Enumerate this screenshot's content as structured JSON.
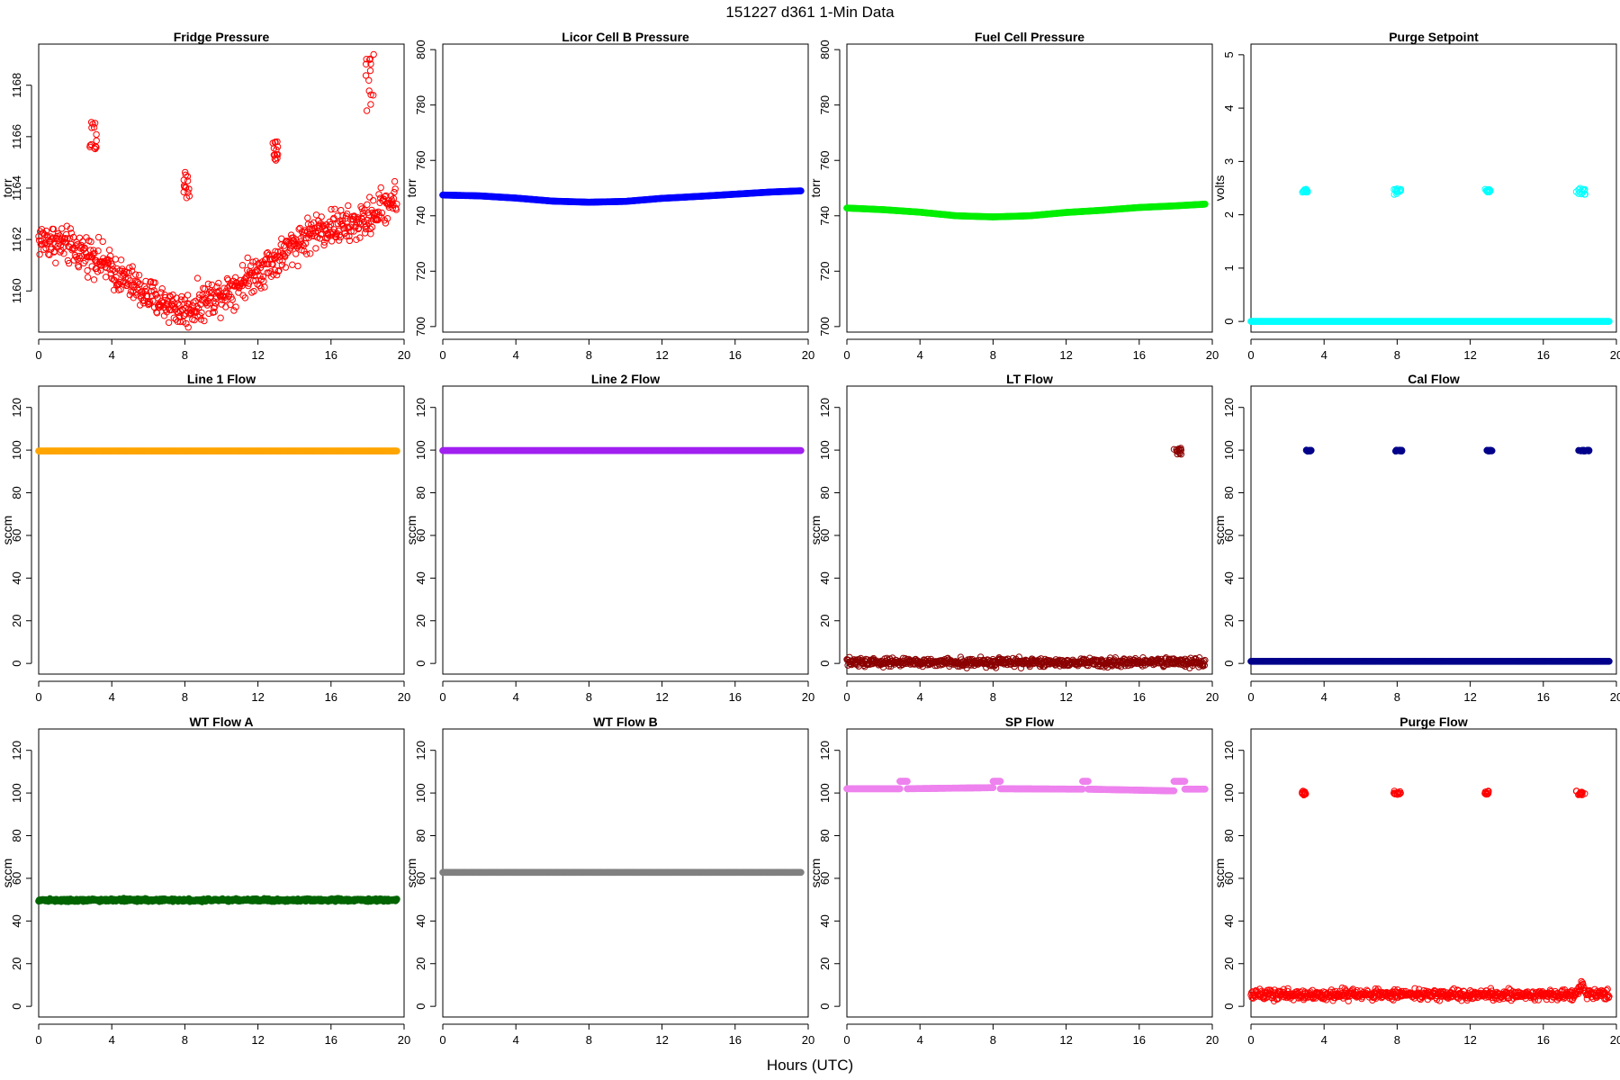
{
  "figure": {
    "title": "151227   d361   1-Min Data",
    "xlabel": "Hours (UTC)"
  },
  "chart_data": [
    {
      "type": "scatter",
      "title": "Fridge Pressure",
      "ylabel": "torr",
      "color": "#ff0000",
      "marker": "open-circle",
      "xlim": [
        0,
        20
      ],
      "ylim": [
        1158.4,
        1169.6
      ],
      "xticks": [
        0,
        4,
        8,
        12,
        16,
        20
      ],
      "yticks": [
        1160,
        1162,
        1164,
        1166,
        1168
      ],
      "series": [
        {
          "kind": "trend",
          "x": [
            0,
            1,
            2,
            3,
            4,
            5,
            6,
            7,
            8,
            9,
            10,
            11,
            12,
            13,
            14,
            15,
            16,
            17,
            18,
            19,
            19.6
          ],
          "y": [
            1162.0,
            1161.9,
            1161.6,
            1161.4,
            1160.8,
            1160.3,
            1159.8,
            1159.5,
            1159.2,
            1159.6,
            1159.9,
            1160.3,
            1160.8,
            1161.2,
            1161.8,
            1162.3,
            1162.5,
            1162.5,
            1162.8,
            1163.4,
            1163.6
          ],
          "scatter": 0.35
        },
        {
          "kind": "cluster",
          "x": [
            2.8,
            3.2
          ],
          "y": [
            1165.4,
            1166.6
          ]
        },
        {
          "kind": "cluster",
          "x": [
            7.9,
            8.3
          ],
          "y": [
            1163.6,
            1164.8
          ]
        },
        {
          "kind": "cluster",
          "x": [
            12.8,
            13.1
          ],
          "y": [
            1164.8,
            1166.0
          ]
        },
        {
          "kind": "cluster",
          "x": [
            17.9,
            18.4
          ],
          "y": [
            1167.0,
            1169.4
          ]
        }
      ]
    },
    {
      "type": "scatter",
      "title": "Licor Cell B Pressure",
      "ylabel": "torr",
      "color": "#0000ff",
      "marker": "filled",
      "xlim": [
        0,
        20
      ],
      "ylim": [
        698,
        802
      ],
      "xticks": [
        0,
        4,
        8,
        12,
        16,
        20
      ],
      "yticks": [
        700,
        720,
        740,
        760,
        780,
        800
      ],
      "series": [
        {
          "kind": "trend",
          "x": [
            0,
            2,
            4,
            6,
            8,
            10,
            12,
            14,
            16,
            18,
            19.6
          ],
          "y": [
            747.5,
            747.2,
            746.4,
            745.3,
            744.9,
            745.2,
            746.3,
            747.0,
            747.8,
            748.6,
            749.0
          ],
          "scatter": 0
        }
      ]
    },
    {
      "type": "scatter",
      "title": "Fuel Cell Pressure",
      "ylabel": "torr",
      "color": "#00ee00",
      "marker": "filled",
      "xlim": [
        0,
        20
      ],
      "ylim": [
        698,
        802
      ],
      "xticks": [
        0,
        4,
        8,
        12,
        16,
        20
      ],
      "yticks": [
        700,
        720,
        740,
        760,
        780,
        800
      ],
      "series": [
        {
          "kind": "trend",
          "x": [
            0,
            2,
            4,
            6,
            8,
            10,
            12,
            14,
            16,
            18,
            19.6
          ],
          "y": [
            742.8,
            742.2,
            741.3,
            740.0,
            739.6,
            740.0,
            741.2,
            742.0,
            743.0,
            743.6,
            744.2
          ],
          "scatter": 0
        }
      ]
    },
    {
      "type": "scatter",
      "title": "Purge Setpoint",
      "ylabel": "volts",
      "color": "#00ffff",
      "marker": "filled",
      "xlim": [
        0,
        20
      ],
      "ylim": [
        -0.2,
        5.2
      ],
      "xticks": [
        0,
        4,
        8,
        12,
        16,
        20
      ],
      "yticks": [
        0,
        1,
        2,
        3,
        4,
        5
      ],
      "series": [
        {
          "kind": "trend",
          "x": [
            0,
            19.6
          ],
          "y": [
            0,
            0
          ],
          "scatter": 0
        },
        {
          "kind": "cluster",
          "x": [
            2.8,
            3.1
          ],
          "y": [
            2.42,
            2.48
          ],
          "hollow": true
        },
        {
          "kind": "cluster",
          "x": [
            7.8,
            8.2
          ],
          "y": [
            2.38,
            2.5
          ],
          "hollow": true
        },
        {
          "kind": "cluster",
          "x": [
            12.8,
            13.1
          ],
          "y": [
            2.42,
            2.48
          ],
          "hollow": true
        },
        {
          "kind": "cluster",
          "x": [
            17.8,
            18.3
          ],
          "y": [
            2.38,
            2.5
          ],
          "hollow": true
        }
      ]
    },
    {
      "type": "scatter",
      "title": "Line 1 Flow",
      "ylabel": "sccm",
      "color": "#ffa500",
      "marker": "filled",
      "xlim": [
        0,
        20
      ],
      "ylim": [
        -5,
        130
      ],
      "xticks": [
        0,
        4,
        8,
        12,
        16,
        20
      ],
      "yticks": [
        0,
        20,
        40,
        60,
        80,
        100,
        120
      ],
      "series": [
        {
          "kind": "trend",
          "x": [
            0,
            19.6
          ],
          "y": [
            99.6,
            99.6
          ],
          "scatter": 0
        }
      ]
    },
    {
      "type": "scatter",
      "title": "Line 2 Flow",
      "ylabel": "sccm",
      "color": "#a020f0",
      "marker": "filled",
      "xlim": [
        0,
        20
      ],
      "ylim": [
        -5,
        130
      ],
      "xticks": [
        0,
        4,
        8,
        12,
        16,
        20
      ],
      "yticks": [
        0,
        20,
        40,
        60,
        80,
        100,
        120
      ],
      "series": [
        {
          "kind": "trend",
          "x": [
            0,
            19.6
          ],
          "y": [
            99.8,
            99.8
          ],
          "scatter": 0
        }
      ]
    },
    {
      "type": "scatter",
      "title": "LT Flow",
      "ylabel": "sccm",
      "color": "#8b0000",
      "marker": "open-circle",
      "xlim": [
        0,
        20
      ],
      "ylim": [
        -5,
        130
      ],
      "xticks": [
        0,
        4,
        8,
        12,
        16,
        20
      ],
      "yticks": [
        0,
        20,
        40,
        60,
        80,
        100,
        120
      ],
      "series": [
        {
          "kind": "trend",
          "x": [
            0,
            19.6
          ],
          "y": [
            0.5,
            0.5
          ],
          "scatter": 1.0
        },
        {
          "kind": "cluster",
          "x": [
            17.9,
            18.3
          ],
          "y": [
            98,
            101
          ]
        }
      ]
    },
    {
      "type": "scatter",
      "title": "Cal Flow",
      "ylabel": "sccm",
      "color": "#00008b",
      "marker": "filled",
      "xlim": [
        0,
        20
      ],
      "ylim": [
        -5,
        130
      ],
      "xticks": [
        0,
        4,
        8,
        12,
        16,
        20
      ],
      "yticks": [
        0,
        20,
        40,
        60,
        80,
        100,
        120
      ],
      "series": [
        {
          "kind": "trend",
          "x": [
            0,
            19.6
          ],
          "y": [
            1.0,
            1.0
          ],
          "scatter": 0
        },
        {
          "kind": "cluster",
          "x": [
            2.9,
            3.3
          ],
          "y": [
            99.5,
            100
          ]
        },
        {
          "kind": "cluster",
          "x": [
            7.9,
            8.4
          ],
          "y": [
            99.5,
            100
          ]
        },
        {
          "kind": "cluster",
          "x": [
            12.9,
            13.2
          ],
          "y": [
            99.5,
            100
          ]
        },
        {
          "kind": "cluster",
          "x": [
            17.9,
            18.5
          ],
          "y": [
            99.5,
            100
          ]
        }
      ]
    },
    {
      "type": "scatter",
      "title": "WT Flow A",
      "ylabel": "sccm",
      "color": "#006400",
      "marker": "filled",
      "xlim": [
        0,
        20
      ],
      "ylim": [
        -5,
        130
      ],
      "xticks": [
        0,
        4,
        8,
        12,
        16,
        20
      ],
      "yticks": [
        0,
        20,
        40,
        60,
        80,
        100,
        120
      ],
      "series": [
        {
          "kind": "trend",
          "x": [
            0,
            19.6
          ],
          "y": [
            49.8,
            49.8
          ],
          "scatter": 0.3
        }
      ]
    },
    {
      "type": "scatter",
      "title": "WT Flow B",
      "ylabel": "sccm",
      "color": "#808080",
      "marker": "filled",
      "xlim": [
        0,
        20
      ],
      "ylim": [
        -5,
        130
      ],
      "xticks": [
        0,
        4,
        8,
        12,
        16,
        20
      ],
      "yticks": [
        0,
        20,
        40,
        60,
        80,
        100,
        120
      ],
      "series": [
        {
          "kind": "trend",
          "x": [
            0,
            19.6
          ],
          "y": [
            62.8,
            62.8
          ],
          "scatter": 0
        }
      ]
    },
    {
      "type": "scatter",
      "title": "SP Flow",
      "ylabel": "sccm",
      "color": "#ee82ee",
      "marker": "filled",
      "xlim": [
        0,
        20
      ],
      "ylim": [
        -5,
        130
      ],
      "xticks": [
        0,
        4,
        8,
        12,
        16,
        20
      ],
      "yticks": [
        0,
        20,
        40,
        60,
        80,
        100,
        120
      ],
      "series": [
        {
          "kind": "segment",
          "x": [
            0,
            2.9
          ],
          "y": [
            102,
            102
          ]
        },
        {
          "kind": "segment",
          "x": [
            2.9,
            3.3
          ],
          "y": [
            105.5,
            105.5
          ]
        },
        {
          "kind": "segment",
          "x": [
            3.3,
            8.0
          ],
          "y": [
            102,
            102.5
          ]
        },
        {
          "kind": "segment",
          "x": [
            8.0,
            8.4
          ],
          "y": [
            105.5,
            105.5
          ]
        },
        {
          "kind": "segment",
          "x": [
            8.4,
            12.9
          ],
          "y": [
            102,
            101.8
          ]
        },
        {
          "kind": "segment",
          "x": [
            12.9,
            13.2
          ],
          "y": [
            105.5,
            105.5
          ]
        },
        {
          "kind": "segment",
          "x": [
            13.2,
            17.9
          ],
          "y": [
            101.8,
            101
          ]
        },
        {
          "kind": "segment",
          "x": [
            17.9,
            18.5
          ],
          "y": [
            105.5,
            105.5
          ]
        },
        {
          "kind": "segment",
          "x": [
            18.5,
            19.6
          ],
          "y": [
            101.8,
            101.8
          ]
        }
      ]
    },
    {
      "type": "scatter",
      "title": "Purge Flow",
      "ylabel": "sccm",
      "color": "#ff0000",
      "marker": "open-circle",
      "xlim": [
        0,
        20
      ],
      "ylim": [
        -5,
        130
      ],
      "xticks": [
        0,
        4,
        8,
        12,
        16,
        20
      ],
      "yticks": [
        0,
        20,
        40,
        60,
        80,
        100,
        120
      ],
      "series": [
        {
          "kind": "trend",
          "x": [
            0,
            4,
            8,
            12,
            16,
            17.8,
            18.1,
            18.4,
            19.6
          ],
          "y": [
            5.5,
            5.4,
            5.6,
            5.5,
            5.4,
            5.6,
            10.5,
            6.0,
            5.4
          ],
          "scatter": 1.2
        },
        {
          "kind": "cluster",
          "x": [
            2.8,
            3.0
          ],
          "y": [
            99,
            101
          ]
        },
        {
          "kind": "cluster",
          "x": [
            7.8,
            8.2
          ],
          "y": [
            99,
            101
          ]
        },
        {
          "kind": "cluster",
          "x": [
            12.8,
            13.0
          ],
          "y": [
            99,
            101
          ]
        },
        {
          "kind": "cluster",
          "x": [
            17.8,
            18.3
          ],
          "y": [
            99,
            101
          ]
        }
      ]
    }
  ]
}
